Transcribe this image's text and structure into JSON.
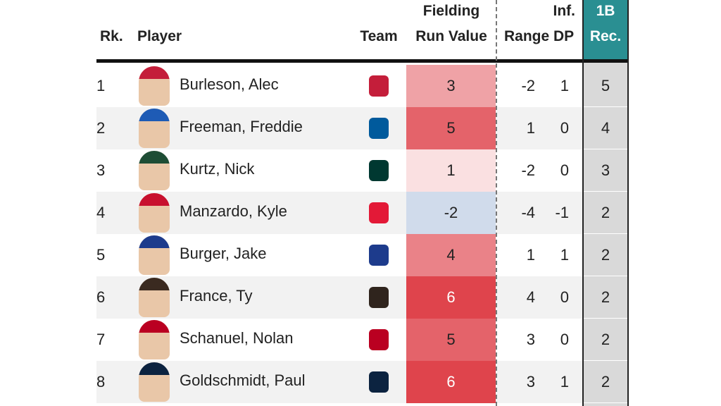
{
  "table": {
    "header": {
      "rank": "Rk.",
      "player": "Player",
      "team": "Team",
      "frv": [
        "Fielding",
        "Run Value"
      ],
      "inf": "Inf.",
      "range": "Range",
      "dp": "DP",
      "rec": [
        "1B",
        "Rec."
      ]
    },
    "rows": [
      {
        "rank": 1,
        "player": "Burleson, Alec",
        "frv": 3,
        "range": -2,
        "dp": 1,
        "rec": 5
      },
      {
        "rank": 2,
        "player": "Freeman, Freddie",
        "frv": 5,
        "range": 1,
        "dp": 0,
        "rec": 4
      },
      {
        "rank": 3,
        "player": "Kurtz, Nick",
        "frv": 1,
        "range": -2,
        "dp": 0,
        "rec": 3
      },
      {
        "rank": 4,
        "player": "Manzardo, Kyle",
        "frv": -2,
        "range": -4,
        "dp": -1,
        "rec": 2
      },
      {
        "rank": 5,
        "player": "Burger, Jake",
        "frv": 4,
        "range": 1,
        "dp": 1,
        "rec": 2
      },
      {
        "rank": 6,
        "player": "France, Ty",
        "frv": 6,
        "range": 4,
        "dp": 0,
        "rec": 2
      },
      {
        "rank": 7,
        "player": "Schanuel, Nolan",
        "frv": 5,
        "range": 3,
        "dp": 0,
        "rec": 2
      },
      {
        "rank": 8,
        "player": "Goldschmidt, Paul",
        "frv": 6,
        "range": 3,
        "dp": 1,
        "rec": 2
      }
    ]
  }
}
